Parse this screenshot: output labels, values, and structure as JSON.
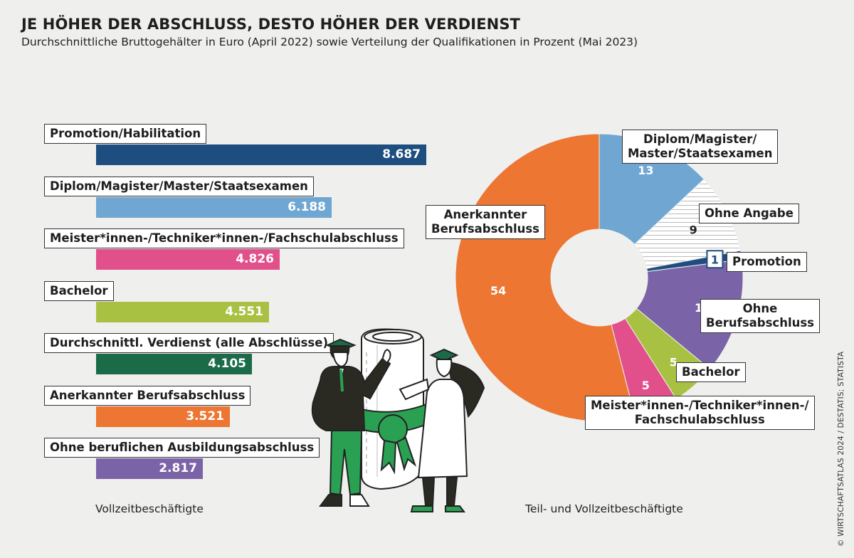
{
  "header": {
    "title": "JE HÖHER DER ABSCHLUSS, DESTO HÖHER DER VERDIENST",
    "subtitle": "Durchschnittliche Bruttogehälter in Euro (April 2022) sowie Verteilung der Qualifikationen in Prozent (Mai 2023)"
  },
  "chart_data": [
    {
      "type": "bar",
      "orientation": "horizontal",
      "categories": [
        "Promotion/Habilitation",
        "Diplom/Magister/Master/Staatsexamen",
        "Meister*innen-/Techniker*innen-/Fachschulabschluss",
        "Bachelor",
        "Durchschnittl. Verdienst (alle Abschlüsse)",
        "Anerkannter Berufsabschluss",
        "Ohne beruflichen Ausbildungsabschluss"
      ],
      "values": [
        8687,
        6188,
        4826,
        4551,
        4105,
        3521,
        2817
      ],
      "value_labels": [
        "8.687",
        "6.188",
        "4.826",
        "4.551",
        "4.105",
        "3.521",
        "2.817"
      ],
      "colors": [
        "#1e4d80",
        "#6fa6d2",
        "#e1508a",
        "#a9c143",
        "#1b6b48",
        "#ec7632",
        "#7b63a8"
      ],
      "xlabel": "Vollzeitbeschäftigte",
      "xlim": [
        0,
        8687
      ]
    },
    {
      "type": "pie",
      "variant": "donut",
      "categories": [
        "Diplom/Magister/Master/Staatsexamen",
        "Ohne Angabe",
        "Promotion",
        "Ohne Berufsabschluss",
        "Bachelor",
        "Meister*innen-/Techniker*innen-/Fachschulabschluss",
        "Anerkannter Berufsabschluss"
      ],
      "values": [
        13,
        9,
        1,
        13,
        5,
        5,
        54
      ],
      "value_labels": [
        "13",
        "9",
        "1",
        "13",
        "5",
        "5",
        "54"
      ],
      "slice_labels": [
        [
          "Diplom/Magister/",
          "Master/Staatsexamen"
        ],
        [
          "Ohne Angabe"
        ],
        [
          "Promotion"
        ],
        [
          "Ohne",
          "Berufsabschluss"
        ],
        [
          "Bachelor"
        ],
        [
          "Meister*innen-/Techniker*innen-/",
          "Fachschulabschluss"
        ],
        [
          "Anerkannter",
          "Berufsabschluss"
        ]
      ],
      "colors": [
        "#6fa6d2",
        "#ffffff",
        "#1e4d80",
        "#7b63a8",
        "#a9c143",
        "#e1508a",
        "#ec7632"
      ],
      "start": "12 o'clock, clockwise",
      "xlabel": "Teil- und Vollzeitbeschäftigte"
    }
  ],
  "credit": "© WIRTSCHAFTSATLAS 2024 / DESTATIS; STATISTA"
}
